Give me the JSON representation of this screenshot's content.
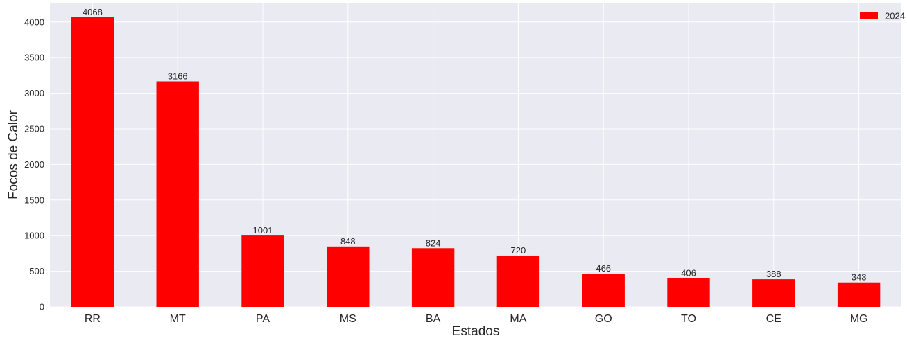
{
  "chart_data": {
    "type": "bar",
    "categories": [
      "RR",
      "MT",
      "PA",
      "MS",
      "BA",
      "MA",
      "GO",
      "TO",
      "CE",
      "MG"
    ],
    "series": [
      {
        "name": "2024",
        "values": [
          4068,
          3166,
          1001,
          848,
          824,
          720,
          466,
          406,
          388,
          343
        ],
        "color": "#ff0000"
      }
    ],
    "xlabel": "Estados",
    "ylabel": "Focos de Calor",
    "ylim": [
      0,
      4270
    ],
    "yticks": [
      0,
      500,
      1000,
      1500,
      2000,
      2500,
      3000,
      3500,
      4000
    ],
    "grid": true,
    "legend_position": "top-right",
    "background_color": "#eaeaf2",
    "grid_color": "#ffffff"
  }
}
